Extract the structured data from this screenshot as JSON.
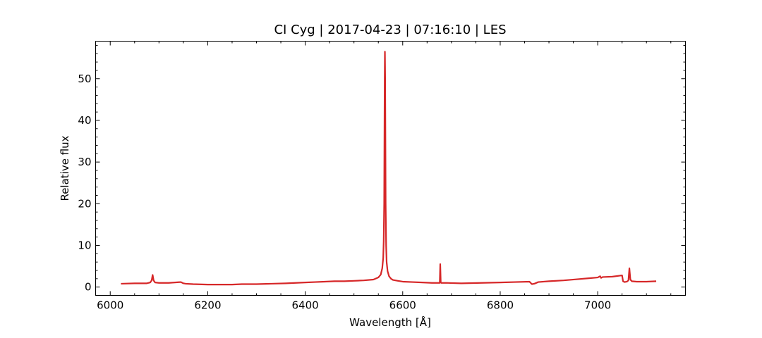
{
  "chart_data": {
    "type": "line",
    "title": "CI Cyg | 2017-04-23 | 07:16:10 | LES",
    "xlabel": "Wavelength [Å]",
    "ylabel": "Relative flux",
    "xlim": [
      5970,
      7180
    ],
    "ylim": [
      -2,
      59
    ],
    "x_ticks": [
      6000,
      6200,
      6400,
      6600,
      6800,
      7000
    ],
    "y_ticks": [
      0,
      10,
      20,
      30,
      40,
      50
    ],
    "x_minor_step": 50,
    "y_minor_step": 2,
    "ticks_direction": "in",
    "grid": false,
    "color": "#d62728",
    "series": [
      {
        "x": [
          6022,
          6050,
          6075,
          6082,
          6085,
          6087,
          6089,
          6092,
          6100,
          6120,
          6145,
          6150,
          6155,
          6170,
          6200,
          6220,
          6250,
          6270,
          6300,
          6330,
          6360,
          6400,
          6420,
          6440,
          6460,
          6480,
          6500,
          6520,
          6540,
          6550,
          6555,
          6558,
          6560,
          6561,
          6562,
          6562.5,
          6563,
          6563.5,
          6564,
          6564.5,
          6565,
          6566,
          6567,
          6569,
          6572,
          6576,
          6580,
          6590,
          6600,
          6620,
          6640,
          6660,
          6676,
          6677,
          6678,
          6679,
          6680,
          6690,
          6720,
          6760,
          6800,
          6830,
          6860,
          6865,
          6870,
          6878,
          6900,
          6930,
          6960,
          6980,
          7000,
          7005,
          7007,
          7010,
          7030,
          7050,
          7052,
          7055,
          7060,
          7063,
          7065,
          7067,
          7070,
          7080,
          7090,
          7100,
          7120
        ],
        "y": [
          0.8,
          0.9,
          0.9,
          1.1,
          1.6,
          2.9,
          1.6,
          1.1,
          1.0,
          1.0,
          1.2,
          0.9,
          0.8,
          0.7,
          0.6,
          0.6,
          0.6,
          0.7,
          0.7,
          0.8,
          0.9,
          1.1,
          1.2,
          1.3,
          1.4,
          1.4,
          1.5,
          1.6,
          1.8,
          2.3,
          3.0,
          4.5,
          7.0,
          11.0,
          20.0,
          35.0,
          50.0,
          56.5,
          50.0,
          35.0,
          20.0,
          10.0,
          6.0,
          3.8,
          2.6,
          2.0,
          1.7,
          1.5,
          1.3,
          1.2,
          1.1,
          1.0,
          1.0,
          5.5,
          1.2,
          1.0,
          1.0,
          1.0,
          0.9,
          1.0,
          1.1,
          1.2,
          1.3,
          0.7,
          0.8,
          1.2,
          1.4,
          1.6,
          1.9,
          2.1,
          2.3,
          2.6,
          2.2,
          2.4,
          2.5,
          2.8,
          1.4,
          1.2,
          1.3,
          1.6,
          4.5,
          1.8,
          1.4,
          1.3,
          1.3,
          1.3,
          1.4
        ]
      }
    ]
  }
}
